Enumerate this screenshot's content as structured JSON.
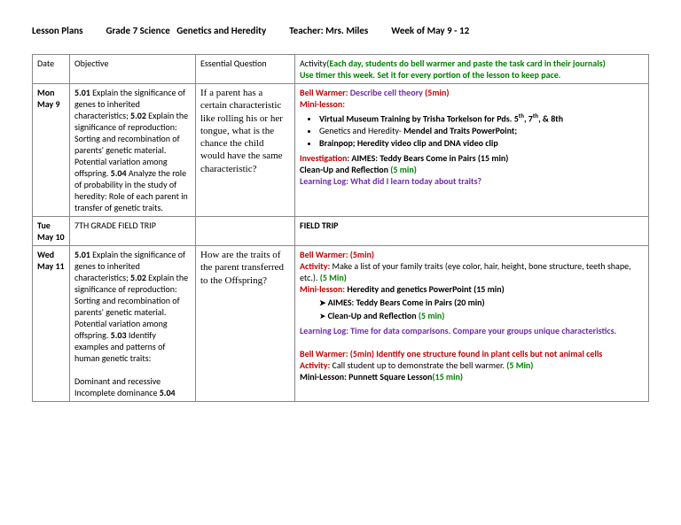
{
  "header": {
    "lesson_plans": "Lesson Plans",
    "grade": "Grade 7 Science",
    "unit": "Genetics and Heredity",
    "teacher": "Teacher:  Mrs. Miles",
    "week": "Week of May 9 - 12"
  },
  "columns": {
    "date": "Date",
    "objective": "Objective",
    "eq": "Essential Question",
    "activity_label": "Activity",
    "activity_note1": "(Each day, students do bell warmer and paste the task card in their journals)",
    "activity_note2": "Use timer this week. Set it for every portion of the lesson to keep pace."
  },
  "rows": {
    "mon": {
      "date1": "Mon",
      "date2": "May 9",
      "obj_501": "5.01",
      "obj_501_txt": " Explain the significance of genes to inherited characteristics; ",
      "obj_502": "5.02",
      "obj_502_txt": " Explain the significance of reproduction: Sorting and recombination of parents' genetic material. Potential variation among offspring. ",
      "obj_504": "5.04",
      "obj_504_txt": " Analyze the role of probability in the study of heredity: Role of each parent in transfer of genetic traits.",
      "eq": "If a parent has a certain characteristic like rolling his or her tongue, what is the chance the child would have the same characteristic?",
      "bw_label": "Bell Warmer:  ",
      "bw_txt": "Describe cell theory ",
      "bw_time": "(5min)",
      "ml_label": "Mini-lesson:",
      "ml_b1a": "Virtual Museum Training by Trisha Torkelson for Pds. 5",
      "ml_b1b": ", 7",
      "ml_b1c": ", & 8th",
      "ml_b2a": "Genetics and Heredity- ",
      "ml_b2b": "Mendel and Traits PowerPoint;",
      "ml_b3": "Brainpop; Heredity video clip and DNA video clip",
      "inv_label": "Investigation",
      "inv_txt": ":  AIMES: Teddy Bears Come in Pairs (15 min)",
      "cleanup": " Clean-Up and Reflection ",
      "cleanup_time": "(5 min)",
      "ll_label": "Learning Log:  ",
      "ll_txt": "What did I learn today about traits?"
    },
    "tue": {
      "date1": "Tue",
      "date2": "May 10",
      "obj": "7TH GRADE FIELD TRIP",
      "act": "FIELD TRIP"
    },
    "wed": {
      "date1": "Wed",
      "date2": "May 11",
      "obj_501": "5.01",
      "obj_501_txt": "  Explain the significance of genes to inherited characteristics; ",
      "obj_502": "5.02",
      "obj_502_txt": " Explain the significance of reproduction: Sorting and recombination of parents' genetic material. Potential variation among offspring. ",
      "obj_503": "5.03",
      "obj_503_txt": "  Identify examples and patterns of human genetic traits:",
      "obj_tail": "Dominant and recessive Incomplete dominance ",
      "obj_504": "5.04",
      "eq": "How are the traits of the parent transferred to the Offspring?",
      "bw1_label": "Bell Warmer:  ",
      "bw1_time": "(5min)",
      "act1_label": "Activity:  ",
      "act1_txt": "Make a list of your family traits (eye color, hair, height, bone structure, teeth shape, etc.). ",
      "act1_time": "(5 Min)",
      "ml_label": "Mini-lesson: ",
      "ml_txt": "Heredity and genetics PowerPoint (15 min)",
      "ml_a1": "AIMES: Teddy Bears Come in Pairs (20 min)",
      "ml_a2": "Clean-Up and Reflection ",
      "ml_a2_time": "(5 min)",
      "ll_label": "Learning Log:  ",
      "ll_txt": "Time for data comparisons.  Compare your groups unique characteristics.",
      "bw2_label": "Bell Warmer:  ",
      "bw2_txt": "(5min) Identify one structure found in plant cells but not animal cells",
      "act2_label": "Activity:  ",
      "act2_txt": "Call student up to demonstrate the bell warmer. ",
      "act2_time": "(5 Min)",
      "ml2_label": "Mini-Lesson: ",
      "ml2_txt": "Punnett Square Lesson",
      "ml2_time": "(15 min)"
    }
  }
}
